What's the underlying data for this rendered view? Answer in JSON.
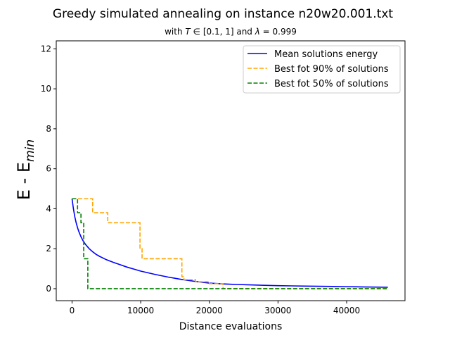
{
  "chart_data": {
    "type": "line",
    "title": "Greedy simulated annealing on instance n20w20.001.txt",
    "subtitle": {
      "prefix": "with ",
      "var": "T",
      "mid": " ∈ [0.1, 1] and ",
      "lambda": "λ",
      "suffix": " = 0.999"
    },
    "xlabel": "Distance evaluations",
    "ylabel": {
      "base": "E - E",
      "sub": "min"
    },
    "xlim": [
      -2300,
      48500
    ],
    "ylim": [
      -0.6,
      12.4
    ],
    "xticks": [
      0,
      10000,
      20000,
      30000,
      40000
    ],
    "xtick_labels": [
      "0",
      "10000",
      "20000",
      "30000",
      "40000"
    ],
    "yticks": [
      0,
      2,
      4,
      6,
      8,
      10,
      12
    ],
    "ytick_labels": [
      "0",
      "2",
      "4",
      "6",
      "8",
      "10",
      "12"
    ],
    "grid": false,
    "legend_placement": "top-right",
    "series": [
      {
        "name": "Mean solutions energy",
        "color": "#0000ff",
        "style": "solid",
        "x": [
          0,
          200,
          400,
          600,
          800,
          1000,
          1300,
          1600,
          2000,
          2500,
          3000,
          3500,
          4000,
          5000,
          6000,
          7000,
          8000,
          9000,
          10000,
          11000,
          12000,
          13000,
          14000,
          15000,
          16000,
          17000,
          18000,
          19000,
          20000,
          22000,
          24000,
          26000,
          28000,
          30000,
          32000,
          34000,
          36000,
          38000,
          40000,
          42000,
          44000,
          46000
        ],
        "y": [
          4.5,
          4.0,
          3.6,
          3.3,
          3.05,
          2.85,
          2.6,
          2.4,
          2.2,
          2.0,
          1.85,
          1.72,
          1.62,
          1.45,
          1.32,
          1.2,
          1.08,
          0.98,
          0.88,
          0.8,
          0.72,
          0.65,
          0.58,
          0.52,
          0.46,
          0.41,
          0.36,
          0.32,
          0.28,
          0.24,
          0.21,
          0.19,
          0.17,
          0.15,
          0.14,
          0.13,
          0.12,
          0.11,
          0.1,
          0.09,
          0.08,
          0.07
        ]
      },
      {
        "name": "Best fot 90% of solutions",
        "color": "#ffa500",
        "style": "dashed",
        "x": [
          0,
          3000,
          3000,
          5200,
          5200,
          9900,
          9900,
          10200,
          10200,
          16000,
          16000,
          16300,
          16300,
          18000,
          18000,
          20000,
          20000,
          22000,
          22000,
          46000
        ],
        "y": [
          4.5,
          4.5,
          3.8,
          3.8,
          3.3,
          3.3,
          2.0,
          2.0,
          1.5,
          1.5,
          0.6,
          0.6,
          0.45,
          0.45,
          0.35,
          0.35,
          0.25,
          0.25,
          0.0,
          0.0
        ]
      },
      {
        "name": "Best fot 50% of solutions",
        "color": "#008000",
        "style": "dashed",
        "x": [
          0,
          800,
          800,
          1300,
          1300,
          1700,
          1700,
          2300,
          2300,
          46000
        ],
        "y": [
          4.5,
          4.5,
          3.8,
          3.8,
          3.3,
          3.3,
          1.5,
          1.5,
          0.0,
          0.0
        ]
      }
    ]
  }
}
